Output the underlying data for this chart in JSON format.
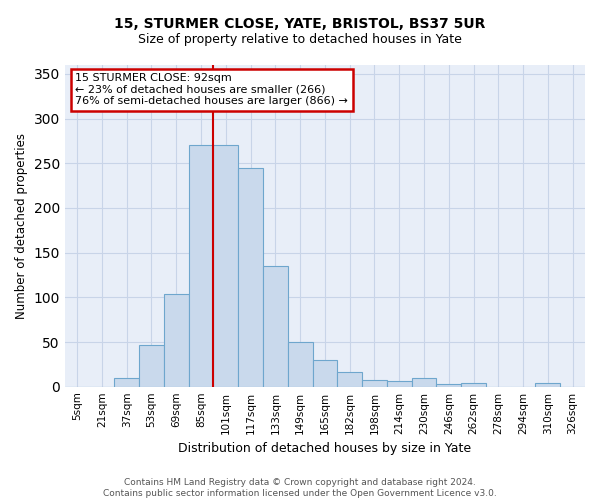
{
  "title1": "15, STURMER CLOSE, YATE, BRISTOL, BS37 5UR",
  "title2": "Size of property relative to detached houses in Yate",
  "xlabel": "Distribution of detached houses by size in Yate",
  "ylabel": "Number of detached properties",
  "footnote": "Contains HM Land Registry data © Crown copyright and database right 2024.\nContains public sector information licensed under the Open Government Licence v3.0.",
  "bin_labels": [
    "5sqm",
    "21sqm",
    "37sqm",
    "53sqm",
    "69sqm",
    "85sqm",
    "101sqm",
    "117sqm",
    "133sqm",
    "149sqm",
    "165sqm",
    "182sqm",
    "198sqm",
    "214sqm",
    "230sqm",
    "246sqm",
    "262sqm",
    "278sqm",
    "294sqm",
    "310sqm",
    "326sqm"
  ],
  "bar_values": [
    0,
    0,
    10,
    47,
    104,
    270,
    270,
    245,
    135,
    50,
    30,
    16,
    7,
    6,
    10,
    3,
    4,
    0,
    0,
    4,
    0
  ],
  "bar_color": "#c9d9ec",
  "bar_edge_color": "#6ea6cd",
  "annotation_text": "15 STURMER CLOSE: 92sqm\n← 23% of detached houses are smaller (266)\n76% of semi-detached houses are larger (866) →",
  "annotation_box_color": "white",
  "annotation_box_edge_color": "#cc0000",
  "vline_color": "#cc0000",
  "vline_x_index": 5.5,
  "ylim": [
    0,
    360
  ],
  "yticks": [
    0,
    50,
    100,
    150,
    200,
    250,
    300,
    350
  ],
  "grid_color": "#c8d4e8",
  "background_color": "#e8eef8"
}
